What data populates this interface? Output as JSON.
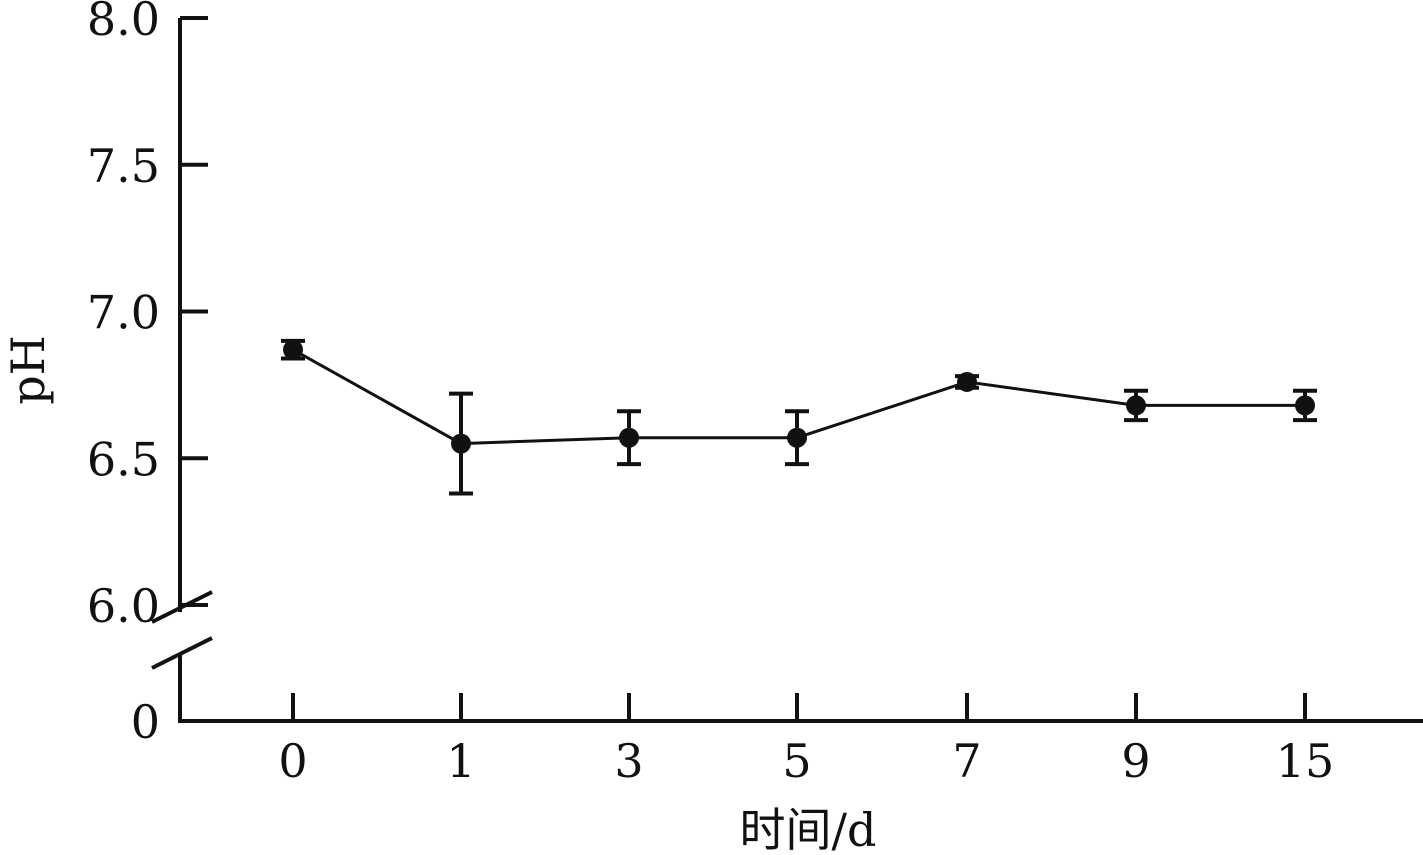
{
  "chart_data": {
    "type": "line",
    "title": "",
    "xlabel": "时间/d",
    "ylabel": "pH",
    "categories": [
      "0",
      "1",
      "3",
      "5",
      "7",
      "9",
      "15"
    ],
    "series": [
      {
        "values": [
          6.87,
          6.55,
          6.57,
          6.57,
          6.76,
          6.68,
          6.68
        ],
        "error": [
          0.03,
          0.17,
          0.09,
          0.09,
          0.02,
          0.05,
          0.05
        ]
      }
    ],
    "ylim": [
      6.0,
      8.0
    ],
    "y_ticks": [
      "6.0",
      "6.5",
      "7.0",
      "7.5",
      "8.0"
    ],
    "y_axis_break": true,
    "y_break_label": "0",
    "grid": false,
    "colors": {
      "line": "#111111"
    }
  }
}
